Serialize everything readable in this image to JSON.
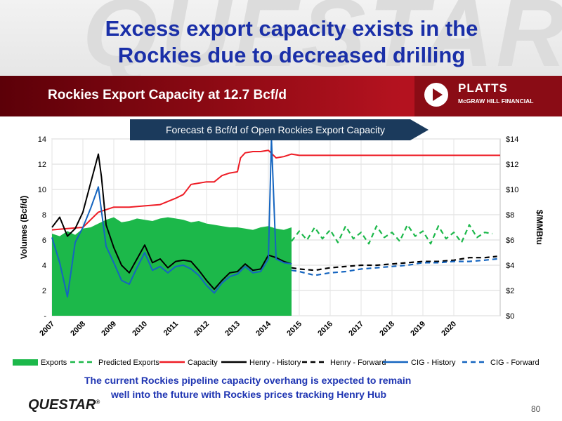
{
  "slide": {
    "title_line1": "Excess export capacity exists in the",
    "title_line2": "Rockies due to decreased drilling",
    "subtitle": "Rockies Export Capacity at 12.7 Bcf/d",
    "watermark": "QUESTAR",
    "platts_name": "PLATTS",
    "platts_sub": "McGRAW HILL FINANCIAL",
    "footer_line1": "The current Rockies pipeline capacity overhang is expected to remain",
    "footer_line2": "well into the future with Rockies prices tracking Henry Hub",
    "logo": "QUESTAR",
    "page_number": "80",
    "colors": {
      "title_blue": "#1a2fa8",
      "band_red": "#9e0e18",
      "arrow_navy": "#1b3a5c"
    }
  },
  "chart_data": {
    "type": "line",
    "banner": "Forecast 6 Bcf/d of Open Rockies Export Capacity",
    "ylabel_left": "Volumes (Bcf/d)",
    "ylabel_right": "$/MMBtu",
    "ylim_left": [
      0,
      14
    ],
    "ylim_right": [
      0,
      14
    ],
    "xlim": [
      2007,
      2021.5
    ],
    "left_ticks": [
      "-",
      "2",
      "4",
      "6",
      "8",
      "10",
      "12",
      "14"
    ],
    "right_ticks": [
      "$0",
      "$2",
      "$4",
      "$6",
      "$8",
      "$10",
      "$12",
      "$14"
    ],
    "x_ticks": [
      "2007",
      "2008",
      "2009",
      "2010",
      "2011",
      "2012",
      "2013",
      "2014",
      "2015",
      "2016",
      "2017",
      "2018",
      "2019",
      "2020"
    ],
    "grid": true,
    "legend_position": "bottom",
    "series": [
      {
        "name": "Exports",
        "style": "area",
        "color": "#1cb84a",
        "axis": "left",
        "x": [
          2007.0,
          2007.25,
          2007.5,
          2007.75,
          2008.0,
          2008.25,
          2008.5,
          2008.75,
          2009.0,
          2009.25,
          2009.5,
          2009.75,
          2010.0,
          2010.25,
          2010.5,
          2010.75,
          2011.0,
          2011.25,
          2011.5,
          2011.75,
          2012.0,
          2012.25,
          2012.5,
          2012.75,
          2013.0,
          2013.25,
          2013.5,
          2013.75,
          2014.0,
          2014.25,
          2014.5,
          2014.75
        ],
        "values": [
          6.5,
          6.3,
          6.7,
          6.4,
          6.9,
          7.0,
          7.3,
          7.6,
          7.8,
          7.4,
          7.5,
          7.7,
          7.6,
          7.5,
          7.7,
          7.8,
          7.7,
          7.6,
          7.4,
          7.5,
          7.3,
          7.2,
          7.1,
          7.0,
          7.0,
          6.9,
          6.8,
          7.0,
          7.1,
          6.9,
          6.8,
          7.0
        ]
      },
      {
        "name": "Predicted Exports",
        "style": "dashed",
        "color": "#1cb84a",
        "axis": "left",
        "x": [
          2014.75,
          2015.0,
          2015.25,
          2015.5,
          2015.75,
          2016.0,
          2016.25,
          2016.5,
          2016.75,
          2017.0,
          2017.25,
          2017.5,
          2017.75,
          2018.0,
          2018.25,
          2018.5,
          2018.75,
          2019.0,
          2019.25,
          2019.5,
          2019.75,
          2020.0,
          2020.25,
          2020.5,
          2020.75,
          2021.0,
          2021.25
        ],
        "values": [
          5.9,
          6.7,
          6.0,
          7.0,
          6.1,
          6.8,
          5.8,
          7.1,
          6.1,
          6.6,
          5.7,
          7.1,
          6.2,
          6.6,
          5.9,
          7.2,
          6.3,
          6.7,
          5.7,
          7.1,
          6.1,
          6.6,
          5.8,
          7.2,
          6.2,
          6.6,
          6.5
        ]
      },
      {
        "name": "Capacity",
        "style": "solid",
        "color": "#ee1c25",
        "axis": "left",
        "x": [
          2007.0,
          2007.5,
          2008.0,
          2008.25,
          2008.5,
          2008.75,
          2009.0,
          2009.5,
          2010.0,
          2010.5,
          2011.0,
          2011.25,
          2011.5,
          2011.75,
          2012.0,
          2012.25,
          2012.5,
          2012.75,
          2013.0,
          2013.1,
          2013.25,
          2013.5,
          2013.75,
          2014.0,
          2014.25,
          2014.5,
          2014.75,
          2015.0,
          2016.0,
          2017.0,
          2018.0,
          2019.0,
          2020.0,
          2021.0,
          2021.5
        ],
        "values": [
          6.8,
          6.9,
          7.0,
          7.6,
          8.2,
          8.4,
          8.6,
          8.6,
          8.7,
          8.8,
          9.3,
          9.6,
          10.4,
          10.5,
          10.6,
          10.6,
          11.1,
          11.3,
          11.4,
          12.5,
          12.9,
          13.0,
          13.0,
          13.1,
          12.5,
          12.6,
          12.8,
          12.7,
          12.7,
          12.7,
          12.7,
          12.7,
          12.7,
          12.7,
          12.7
        ]
      },
      {
        "name": "Henry - History",
        "style": "solid",
        "color": "#000000",
        "axis": "right",
        "x": [
          2007.0,
          2007.25,
          2007.5,
          2007.75,
          2008.0,
          2008.25,
          2008.5,
          2008.6,
          2008.75,
          2009.0,
          2009.25,
          2009.5,
          2009.75,
          2010.0,
          2010.25,
          2010.5,
          2010.75,
          2011.0,
          2011.25,
          2011.5,
          2011.75,
          2012.0,
          2012.25,
          2012.5,
          2012.75,
          2013.0,
          2013.25,
          2013.5,
          2013.75,
          2014.0,
          2014.25,
          2014.5,
          2014.75
        ],
        "values": [
          7.0,
          7.8,
          6.3,
          6.9,
          8.2,
          10.5,
          12.8,
          11.0,
          7.2,
          5.4,
          4.0,
          3.4,
          4.5,
          5.6,
          4.2,
          4.5,
          3.8,
          4.3,
          4.4,
          4.3,
          3.6,
          2.8,
          2.1,
          2.8,
          3.4,
          3.5,
          4.1,
          3.6,
          3.7,
          4.8,
          4.6,
          4.3,
          4.1
        ]
      },
      {
        "name": "Henry - Forward",
        "style": "dashed",
        "color": "#000000",
        "axis": "right",
        "x": [
          2014.75,
          2015.0,
          2015.5,
          2016.0,
          2016.5,
          2017.0,
          2017.5,
          2018.0,
          2018.5,
          2019.0,
          2019.5,
          2020.0,
          2020.5,
          2021.0,
          2021.4
        ],
        "values": [
          3.8,
          3.7,
          3.6,
          3.8,
          3.9,
          4.0,
          4.0,
          4.1,
          4.2,
          4.3,
          4.3,
          4.4,
          4.6,
          4.6,
          4.7
        ]
      },
      {
        "name": "CIG - History",
        "style": "solid",
        "color": "#1565c0",
        "axis": "right",
        "x": [
          2007.0,
          2007.25,
          2007.5,
          2007.75,
          2008.0,
          2008.25,
          2008.5,
          2008.75,
          2009.0,
          2009.25,
          2009.5,
          2009.75,
          2010.0,
          2010.25,
          2010.5,
          2010.75,
          2011.0,
          2011.25,
          2011.5,
          2011.75,
          2012.0,
          2012.25,
          2012.5,
          2012.75,
          2013.0,
          2013.25,
          2013.5,
          2013.75,
          2014.0,
          2014.1,
          2014.25,
          2014.5,
          2014.75
        ],
        "values": [
          6.2,
          4.2,
          1.5,
          5.8,
          7.0,
          8.5,
          10.2,
          5.5,
          4.2,
          2.8,
          2.5,
          3.8,
          5.0,
          3.6,
          3.9,
          3.4,
          3.9,
          4.0,
          3.7,
          3.2,
          2.4,
          1.8,
          2.6,
          3.1,
          3.3,
          3.9,
          3.4,
          3.5,
          4.5,
          14.0,
          4.5,
          4.2,
          4.1
        ]
      },
      {
        "name": "CIG - Forward",
        "style": "dashed",
        "color": "#1565c0",
        "axis": "right",
        "x": [
          2014.75,
          2015.0,
          2015.5,
          2016.0,
          2016.5,
          2017.0,
          2017.5,
          2018.0,
          2018.5,
          2019.0,
          2019.5,
          2020.0,
          2020.5,
          2021.0,
          2021.4
        ],
        "values": [
          3.6,
          3.5,
          3.2,
          3.4,
          3.5,
          3.7,
          3.8,
          3.9,
          4.0,
          4.2,
          4.2,
          4.3,
          4.3,
          4.4,
          4.5
        ]
      }
    ]
  }
}
